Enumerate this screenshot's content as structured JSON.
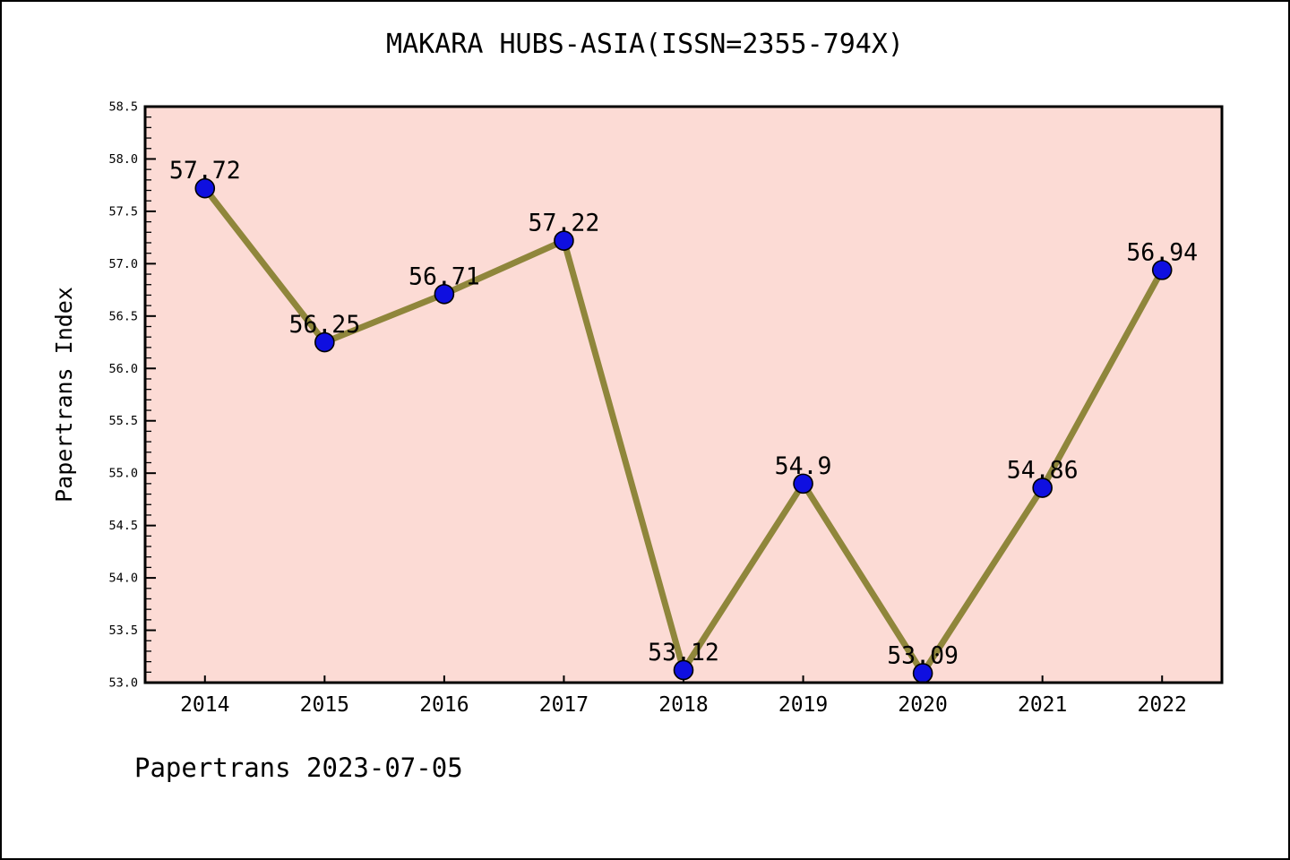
{
  "title": "MAKARA HUBS-ASIA(ISSN=2355-794X)",
  "footer": "Papertrans 2023-07-05",
  "chart_data": {
    "type": "line",
    "title": "MAKARA HUBS-ASIA(ISSN=2355-794X)",
    "xlabel": "",
    "ylabel": "Papertrans Index",
    "x": [
      2014,
      2015,
      2016,
      2017,
      2018,
      2019,
      2020,
      2021,
      2022
    ],
    "x_tick_labels": [
      "2014",
      "2015",
      "2016",
      "2017",
      "2018",
      "2019",
      "2020",
      "2021",
      "2022"
    ],
    "values": [
      57.72,
      56.25,
      56.71,
      57.22,
      53.12,
      54.9,
      53.09,
      54.86,
      56.94
    ],
    "point_labels": [
      "57.72",
      "56.25",
      "56.71",
      "57.22",
      "53.12",
      "54.9",
      "53.09",
      "54.86",
      "56.94"
    ],
    "ylim": [
      53.0,
      58.5
    ],
    "xlim": [
      2013.5,
      2022.5
    ],
    "y_major_step": 0.5,
    "y_minor_step": 0.1,
    "y_tick_labels": [
      "53.0",
      "53.5",
      "54.0",
      "54.5",
      "55.0",
      "55.5",
      "56.0",
      "56.5",
      "57.0",
      "57.5",
      "58.0",
      "58.5"
    ],
    "grid": false,
    "legend": "none",
    "colors": {
      "figure_background": "#ffffff",
      "plot_background": "#fcdbd5",
      "line": "#8f863b",
      "marker_fill": "#0f0fe0",
      "marker_edge": "#000000",
      "text": "#000000",
      "axis": "#000000"
    }
  }
}
